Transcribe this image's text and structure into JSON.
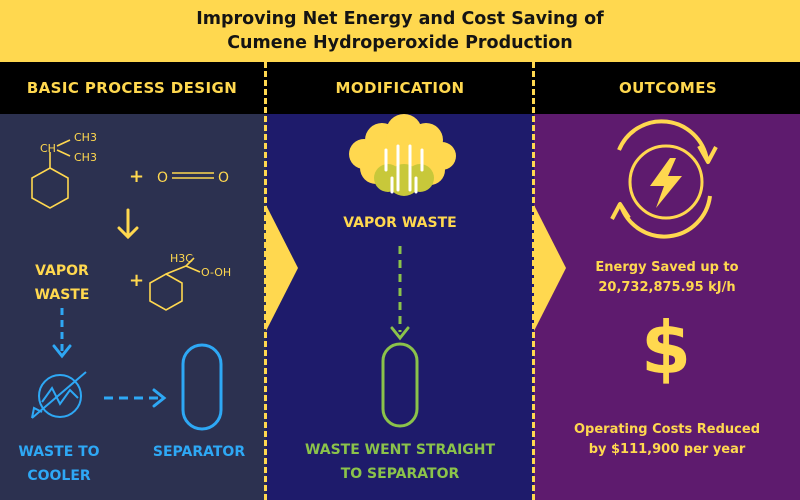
{
  "title": {
    "line1": "Improving Net Energy and Cost Saving of",
    "line2": "Cumene Hydroperoxide Production"
  },
  "columns": {
    "basic": "BASIC PROCESS DESIGN",
    "modification": "MODIFICATION",
    "outcomes": "OUTCOMES"
  },
  "basic": {
    "ch3_top": "CH3",
    "ch_label": "CH",
    "ch3_bottom": "CH3",
    "plus1": "+",
    "oxygen_left": "O",
    "oxygen_right": "O",
    "vapor_line1": "VAPOR",
    "vapor_line2": "WASTE",
    "plus2": "+",
    "h3c": "H3C",
    "oh": "O-OH",
    "waste_line1": "WASTE TO",
    "waste_line2": "COOLER",
    "separator": "SEPARATOR"
  },
  "modification": {
    "vapor": "VAPOR WASTE",
    "result_line1": "WASTE WENT STRAIGHT",
    "result_line2": "TO SEPARATOR"
  },
  "outcomes": {
    "energy_line1": "Energy Saved up to",
    "energy_line2": "20,732,875.95 kJ/h",
    "dollar": "$",
    "cost_line1": "Operating Costs Reduced",
    "cost_line2": "by $111,900 per year"
  },
  "colors": {
    "yellow": "#FFD84F",
    "basic_bg": "#2C3150",
    "modification_bg": "#1E1B6B",
    "outcomes_bg": "#5E1B6E",
    "blue": "#2EA8F5",
    "green": "#8BC34A"
  }
}
